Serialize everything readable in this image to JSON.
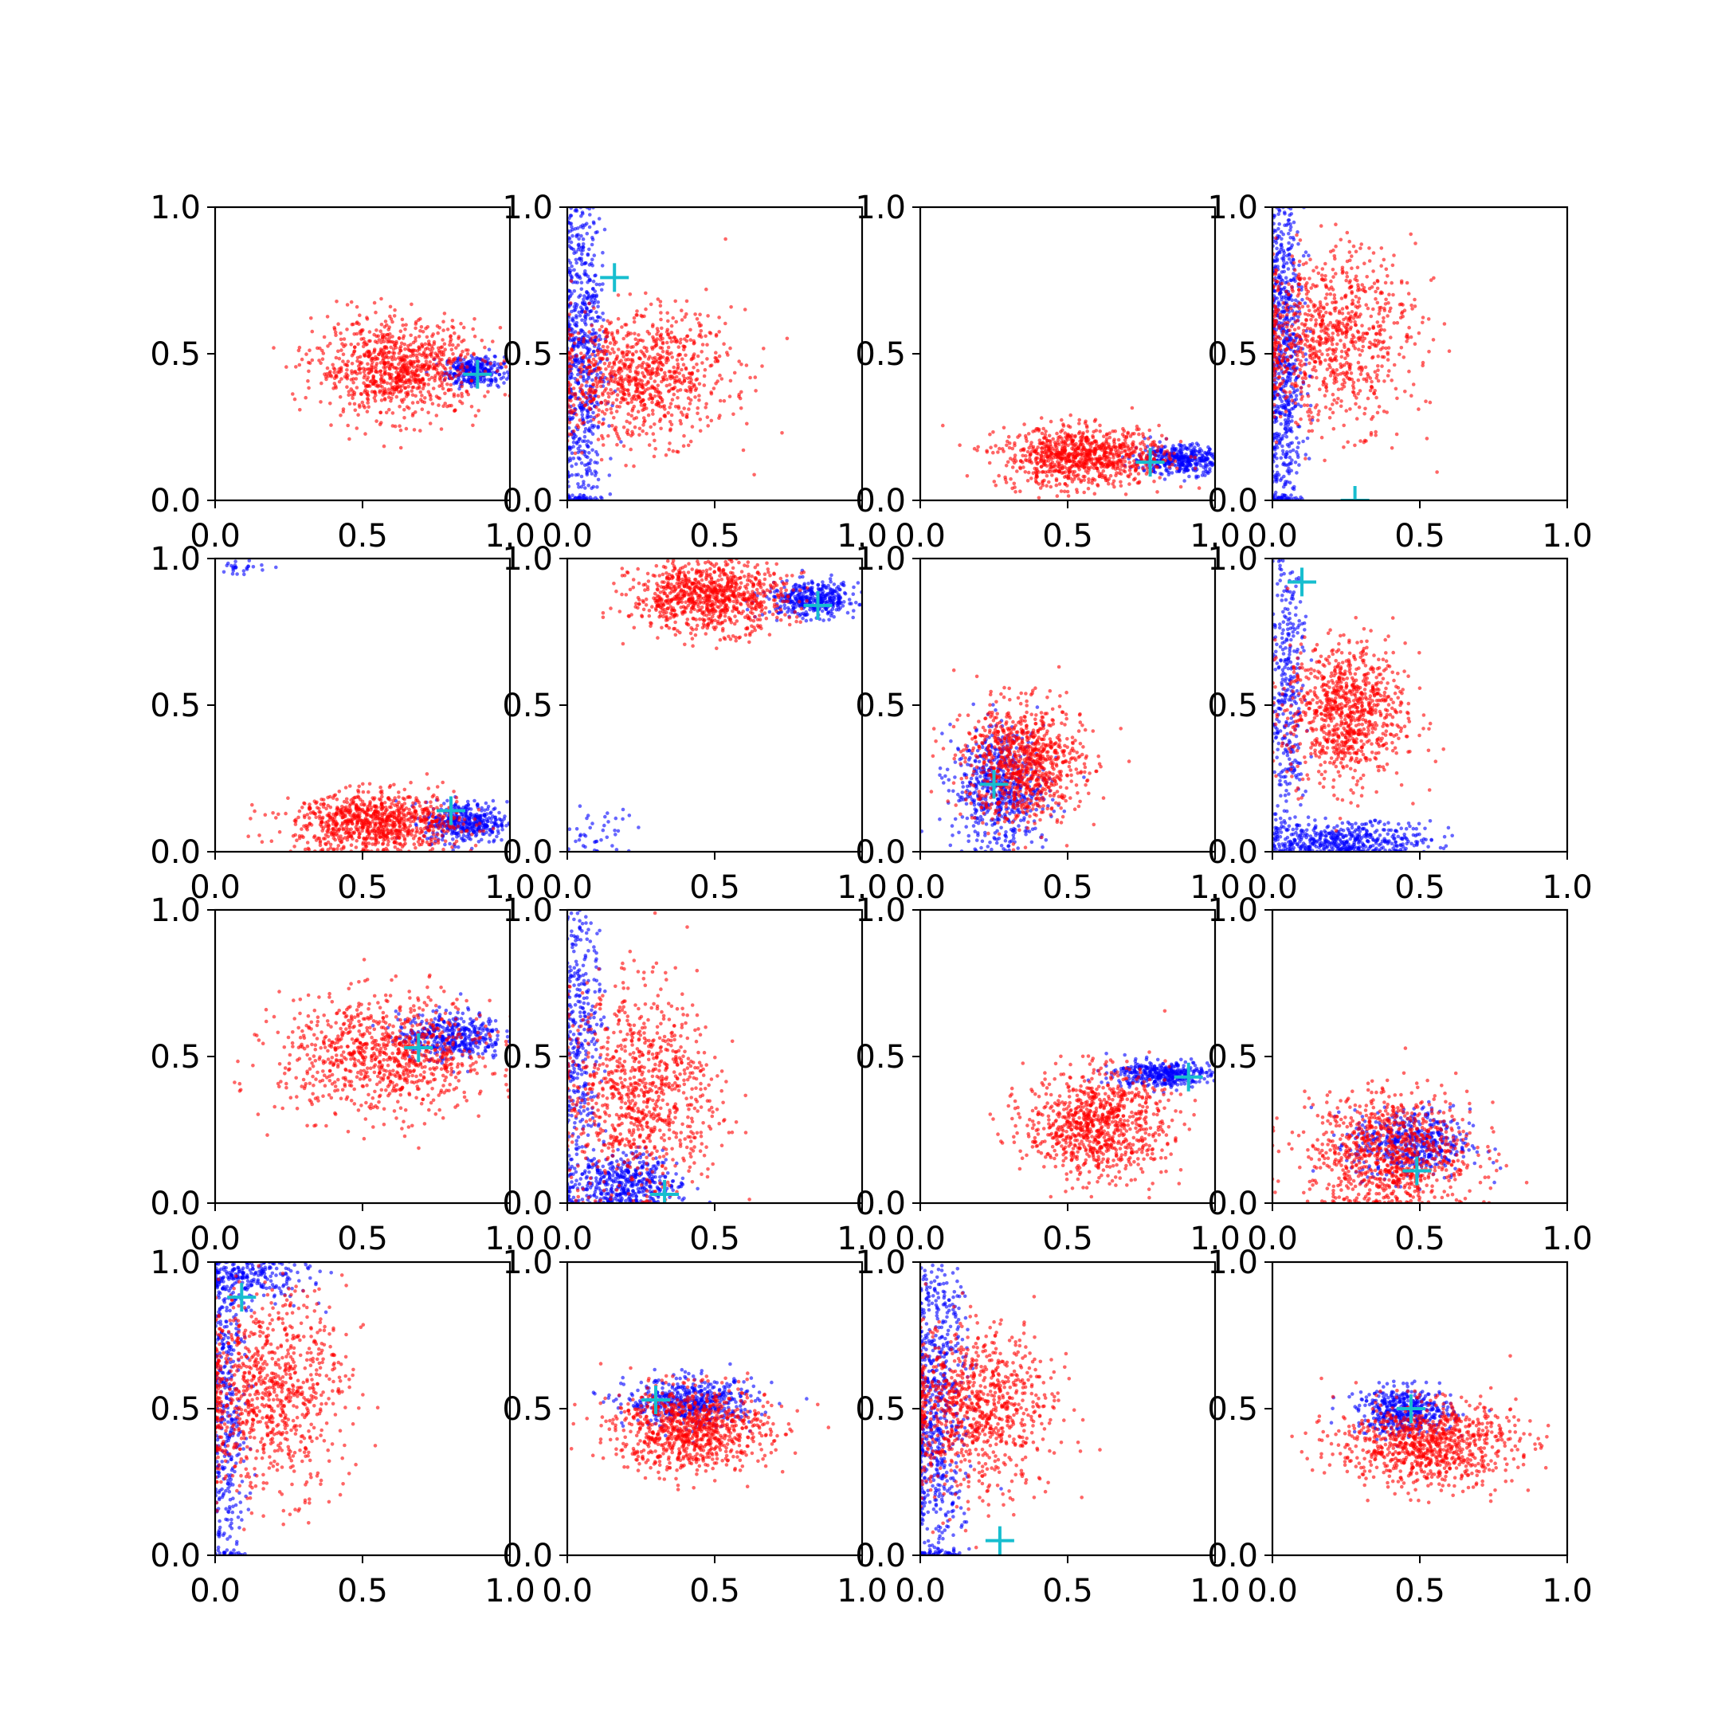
{
  "colors": {
    "background": "#ffffff",
    "axes": "#000000",
    "series_blue": "#0000ff",
    "series_red": "#ff0000",
    "marker": "#17becf"
  },
  "chart_data": [
    {
      "type": "scatter",
      "xlim": [
        0,
        1
      ],
      "ylim": [
        0,
        1
      ],
      "xticks": [
        "0.0",
        "0.5",
        "1.0"
      ],
      "yticks": [
        "0.0",
        "0.5",
        "1.0"
      ],
      "grid": false,
      "series": [
        {
          "color": "blue",
          "kind": "cloud",
          "center": [
            0.88,
            0.44
          ],
          "sd": [
            0.05,
            0.025
          ],
          "n": 300
        },
        {
          "color": "red",
          "kind": "cloud",
          "center": [
            0.62,
            0.45
          ],
          "sd": [
            0.14,
            0.08
          ],
          "n": 900
        }
      ],
      "marker": {
        "symbol": "+",
        "x": 0.89,
        "y": 0.43
      }
    },
    {
      "type": "scatter",
      "xlim": [
        0,
        1
      ],
      "ylim": [
        0,
        1
      ],
      "xticks": [
        "0.0",
        "0.5",
        "1.0"
      ],
      "yticks": [
        "0.0",
        "0.5",
        "1.0"
      ],
      "grid": false,
      "series": [
        {
          "color": "blue",
          "kind": "cloud",
          "center": [
            0.05,
            0.5
          ],
          "sd": [
            0.04,
            0.3
          ],
          "n": 700
        },
        {
          "color": "red",
          "kind": "cloud",
          "center": [
            0.25,
            0.42
          ],
          "sd": [
            0.15,
            0.11
          ],
          "n": 900
        }
      ],
      "marker": {
        "symbol": "+",
        "x": 0.16,
        "y": 0.76
      }
    },
    {
      "type": "scatter",
      "xlim": [
        0,
        1
      ],
      "ylim": [
        0,
        1
      ],
      "xticks": [
        "0.0",
        "0.5",
        "1.0"
      ],
      "yticks": [
        "0.0",
        "0.5",
        "1.0"
      ],
      "grid": false,
      "series": [
        {
          "color": "blue",
          "kind": "cloud",
          "center": [
            0.88,
            0.14
          ],
          "sd": [
            0.08,
            0.025
          ],
          "n": 400
        },
        {
          "color": "red",
          "kind": "cloud",
          "center": [
            0.55,
            0.15
          ],
          "sd": [
            0.14,
            0.05
          ],
          "n": 900
        }
      ],
      "marker": {
        "symbol": "+",
        "x": 0.78,
        "y": 0.13
      }
    },
    {
      "type": "scatter",
      "xlim": [
        0,
        1
      ],
      "ylim": [
        0,
        1
      ],
      "xticks": [
        "0.0",
        "0.5",
        "1.0"
      ],
      "yticks": [
        "0.0",
        "0.5",
        "1.0"
      ],
      "grid": false,
      "series": [
        {
          "color": "blue",
          "kind": "cloud",
          "center": [
            0.04,
            0.5
          ],
          "sd": [
            0.035,
            0.3
          ],
          "n": 700
        },
        {
          "color": "red",
          "kind": "cloud",
          "center": [
            0.2,
            0.55
          ],
          "sd": [
            0.14,
            0.15
          ],
          "n": 900
        }
      ],
      "marker": {
        "symbol": "+",
        "x": 0.28,
        "y": 0.0
      }
    },
    {
      "type": "scatter",
      "xlim": [
        0,
        1
      ],
      "ylim": [
        0,
        1
      ],
      "xticks": [
        "0.0",
        "0.5",
        "1.0"
      ],
      "yticks": [
        "0.0",
        "0.5",
        "1.0"
      ],
      "grid": false,
      "series": [
        {
          "color": "blue",
          "kind": "cloud",
          "center": [
            0.85,
            0.1
          ],
          "sd": [
            0.07,
            0.035
          ],
          "n": 400
        },
        {
          "color": "blue",
          "kind": "cloud",
          "center": [
            0.08,
            0.97
          ],
          "sd": [
            0.06,
            0.015
          ],
          "n": 25
        },
        {
          "color": "red",
          "kind": "cloud",
          "center": [
            0.55,
            0.1
          ],
          "sd": [
            0.14,
            0.05
          ],
          "n": 900
        }
      ],
      "marker": {
        "symbol": "+",
        "x": 0.8,
        "y": 0.14
      }
    },
    {
      "type": "scatter",
      "xlim": [
        0,
        1
      ],
      "ylim": [
        0,
        1
      ],
      "xticks": [
        "0.0",
        "0.5",
        "1.0"
      ],
      "yticks": [
        "0.0",
        "0.5",
        "1.0"
      ],
      "grid": false,
      "series": [
        {
          "color": "blue",
          "kind": "cloud",
          "center": [
            0.83,
            0.86
          ],
          "sd": [
            0.08,
            0.03
          ],
          "n": 400
        },
        {
          "color": "blue",
          "kind": "cloud",
          "center": [
            0.1,
            0.06
          ],
          "sd": [
            0.06,
            0.05
          ],
          "n": 40
        },
        {
          "color": "red",
          "kind": "cloud",
          "center": [
            0.48,
            0.87
          ],
          "sd": [
            0.13,
            0.06
          ],
          "n": 900
        }
      ],
      "marker": {
        "symbol": "+",
        "x": 0.85,
        "y": 0.84
      }
    },
    {
      "type": "scatter",
      "xlim": [
        0,
        1
      ],
      "ylim": [
        0,
        1
      ],
      "xticks": [
        "0.0",
        "0.5",
        "1.0"
      ],
      "yticks": [
        "0.0",
        "0.5",
        "1.0"
      ],
      "grid": false,
      "series": [
        {
          "color": "blue",
          "kind": "cloud",
          "center": [
            0.27,
            0.22
          ],
          "sd": [
            0.08,
            0.1
          ],
          "n": 600
        },
        {
          "color": "red",
          "kind": "cloud",
          "center": [
            0.35,
            0.3
          ],
          "sd": [
            0.1,
            0.1
          ],
          "n": 900
        }
      ],
      "marker": {
        "symbol": "+",
        "x": 0.25,
        "y": 0.23
      }
    },
    {
      "type": "scatter",
      "xlim": [
        0,
        1
      ],
      "ylim": [
        0,
        1
      ],
      "xticks": [
        "0.0",
        "0.5",
        "1.0"
      ],
      "yticks": [
        "0.0",
        "0.5",
        "1.0"
      ],
      "grid": false,
      "series": [
        {
          "color": "blue",
          "kind": "cloud",
          "center": [
            0.05,
            0.55
          ],
          "sd": [
            0.03,
            0.3
          ],
          "n": 350
        },
        {
          "color": "blue",
          "kind": "cloud",
          "center": [
            0.25,
            0.04
          ],
          "sd": [
            0.14,
            0.03
          ],
          "n": 450
        },
        {
          "color": "red",
          "kind": "cloud",
          "center": [
            0.25,
            0.47
          ],
          "sd": [
            0.1,
            0.12
          ],
          "n": 900
        }
      ],
      "marker": {
        "symbol": "+",
        "x": 0.1,
        "y": 0.92
      }
    },
    {
      "type": "scatter",
      "xlim": [
        0,
        1
      ],
      "ylim": [
        0,
        1
      ],
      "xticks": [
        "0.0",
        "0.5",
        "1.0"
      ],
      "yticks": [
        "0.0",
        "0.5",
        "1.0"
      ],
      "grid": false,
      "series": [
        {
          "color": "blue",
          "kind": "cloud",
          "center": [
            0.8,
            0.57
          ],
          "sd": [
            0.09,
            0.04
          ],
          "n": 400
        },
        {
          "color": "red",
          "kind": "cloud",
          "center": [
            0.58,
            0.5
          ],
          "sd": [
            0.18,
            0.1
          ],
          "n": 900
        }
      ],
      "marker": {
        "symbol": "+",
        "x": 0.69,
        "y": 0.53
      }
    },
    {
      "type": "scatter",
      "xlim": [
        0,
        1
      ],
      "ylim": [
        0,
        1
      ],
      "xticks": [
        "0.0",
        "0.5",
        "1.0"
      ],
      "yticks": [
        "0.0",
        "0.5",
        "1.0"
      ],
      "grid": false,
      "series": [
        {
          "color": "blue",
          "kind": "cloud",
          "center": [
            0.05,
            0.6
          ],
          "sd": [
            0.035,
            0.25
          ],
          "n": 350
        },
        {
          "color": "blue",
          "kind": "cloud",
          "center": [
            0.18,
            0.07
          ],
          "sd": [
            0.1,
            0.05
          ],
          "n": 450
        },
        {
          "color": "red",
          "kind": "cloud",
          "center": [
            0.25,
            0.38
          ],
          "sd": [
            0.13,
            0.17
          ],
          "n": 900
        }
      ],
      "marker": {
        "symbol": "+",
        "x": 0.33,
        "y": 0.03
      }
    },
    {
      "type": "scatter",
      "xlim": [
        0,
        1
      ],
      "ylim": [
        0,
        1
      ],
      "xticks": [
        "0.0",
        "0.5",
        "1.0"
      ],
      "yticks": [
        "0.0",
        "0.5",
        "1.0"
      ],
      "grid": false,
      "series": [
        {
          "color": "blue",
          "kind": "cloud",
          "center": [
            0.82,
            0.44
          ],
          "sd": [
            0.08,
            0.022
          ],
          "n": 400
        },
        {
          "color": "red",
          "kind": "cloud",
          "center": [
            0.6,
            0.27
          ],
          "sd": [
            0.12,
            0.09
          ],
          "n": 900
        }
      ],
      "marker": {
        "symbol": "+",
        "x": 0.91,
        "y": 0.43
      }
    },
    {
      "type": "scatter",
      "xlim": [
        0,
        1
      ],
      "ylim": [
        0,
        1
      ],
      "xticks": [
        "0.0",
        "0.5",
        "1.0"
      ],
      "yticks": [
        "0.0",
        "0.5",
        "1.0"
      ],
      "grid": false,
      "series": [
        {
          "color": "blue",
          "kind": "cloud",
          "center": [
            0.47,
            0.2
          ],
          "sd": [
            0.1,
            0.06
          ],
          "n": 500
        },
        {
          "color": "red",
          "kind": "cloud",
          "center": [
            0.4,
            0.17
          ],
          "sd": [
            0.14,
            0.1
          ],
          "n": 900
        }
      ],
      "marker": {
        "symbol": "+",
        "x": 0.49,
        "y": 0.11
      }
    },
    {
      "type": "scatter",
      "xlim": [
        0,
        1
      ],
      "ylim": [
        0,
        1
      ],
      "xticks": [
        "0.0",
        "0.5",
        "1.0"
      ],
      "yticks": [
        "0.0",
        "0.5",
        "1.0"
      ],
      "grid": false,
      "series": [
        {
          "color": "blue",
          "kind": "cloud",
          "center": [
            0.04,
            0.5
          ],
          "sd": [
            0.035,
            0.3
          ],
          "n": 400
        },
        {
          "color": "blue",
          "kind": "cloud",
          "center": [
            0.12,
            0.95
          ],
          "sd": [
            0.1,
            0.04
          ],
          "n": 250
        },
        {
          "color": "red",
          "kind": "cloud",
          "center": [
            0.18,
            0.55
          ],
          "sd": [
            0.13,
            0.17
          ],
          "n": 900
        }
      ],
      "marker": {
        "symbol": "+",
        "x": 0.09,
        "y": 0.88
      }
    },
    {
      "type": "scatter",
      "xlim": [
        0,
        1
      ],
      "ylim": [
        0,
        1
      ],
      "xticks": [
        "0.0",
        "0.5",
        "1.0"
      ],
      "yticks": [
        "0.0",
        "0.5",
        "1.0"
      ],
      "grid": false,
      "series": [
        {
          "color": "blue",
          "kind": "cloud",
          "center": [
            0.42,
            0.52
          ],
          "sd": [
            0.11,
            0.04
          ],
          "n": 500
        },
        {
          "color": "red",
          "kind": "cloud",
          "center": [
            0.42,
            0.43
          ],
          "sd": [
            0.13,
            0.07
          ],
          "n": 900
        }
      ],
      "marker": {
        "symbol": "+",
        "x": 0.3,
        "y": 0.53
      }
    },
    {
      "type": "scatter",
      "xlim": [
        0,
        1
      ],
      "ylim": [
        0,
        1
      ],
      "xticks": [
        "0.0",
        "0.5",
        "1.0"
      ],
      "yticks": [
        "0.0",
        "0.5",
        "1.0"
      ],
      "grid": false,
      "series": [
        {
          "color": "blue",
          "kind": "cloud",
          "center": [
            0.06,
            0.5
          ],
          "sd": [
            0.05,
            0.3
          ],
          "n": 700
        },
        {
          "color": "red",
          "kind": "cloud",
          "center": [
            0.18,
            0.5
          ],
          "sd": [
            0.13,
            0.14
          ],
          "n": 900
        }
      ],
      "marker": {
        "symbol": "+",
        "x": 0.27,
        "y": 0.05
      }
    },
    {
      "type": "scatter",
      "xlim": [
        0,
        1
      ],
      "ylim": [
        0,
        1
      ],
      "xticks": [
        "0.0",
        "0.5",
        "1.0"
      ],
      "yticks": [
        "0.0",
        "0.5",
        "1.0"
      ],
      "grid": false,
      "series": [
        {
          "color": "blue",
          "kind": "cloud",
          "center": [
            0.45,
            0.49
          ],
          "sd": [
            0.08,
            0.04
          ],
          "n": 450
        },
        {
          "color": "red",
          "kind": "cloud",
          "center": [
            0.52,
            0.38
          ],
          "sd": [
            0.15,
            0.07
          ],
          "n": 900
        }
      ],
      "marker": {
        "symbol": "+",
        "x": 0.47,
        "y": 0.5
      }
    }
  ]
}
